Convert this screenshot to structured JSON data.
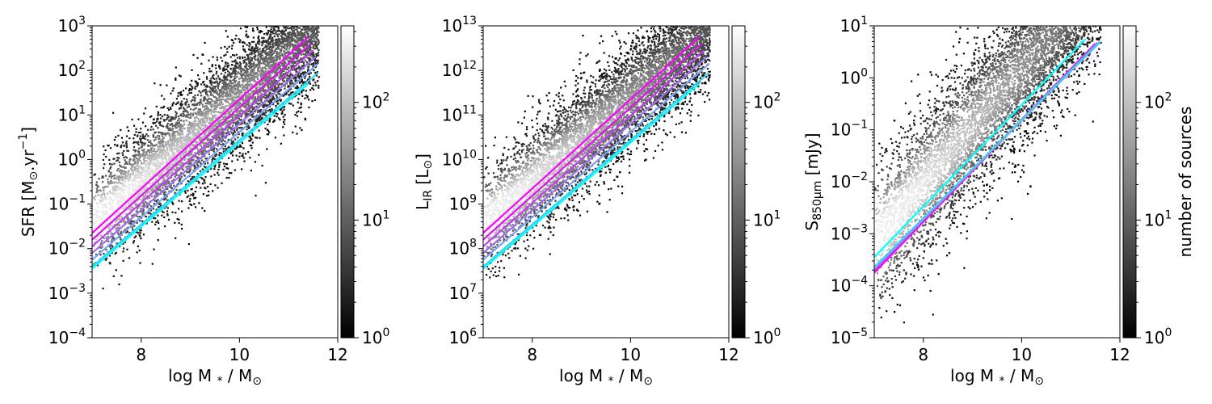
{
  "chart_data": [
    {
      "type": "heatmap",
      "xlabel": "log M",
      "xlabel_sub": "*",
      "xlabel_suffix": " / M",
      "xlabel_sun": "⊙",
      "ylabel_main": "SFR [M",
      "ylabel_sun": "⊙",
      "ylabel_mid": ".yr",
      "ylabel_sup": "−1",
      "ylabel_end": "]",
      "xlim": [
        7,
        12
      ],
      "ylim": [
        -4,
        3
      ],
      "yscale": "log",
      "xticks": [
        "8",
        "10",
        "12"
      ],
      "ytick_exponents": [
        "3",
        "2",
        "1",
        "0",
        "−1",
        "−2",
        "−3",
        "−4"
      ],
      "density_band": {
        "slope": 0.95,
        "intercept_at_7": -1.4,
        "half_width": 1.1
      },
      "series": [
        {
          "color": "#ff00ff",
          "x": [
            7.0,
            11.4
          ],
          "y": [
            -1.65,
            2.75
          ]
        },
        {
          "color": "#e014f0",
          "x": [
            7.0,
            11.45
          ],
          "y": [
            -1.8,
            2.6
          ]
        },
        {
          "color": "#c040f0",
          "x": [
            7.0,
            11.5
          ],
          "y": [
            -1.95,
            2.45
          ]
        },
        {
          "color": "#9f70f0",
          "x": [
            7.0,
            11.55
          ],
          "y": [
            -2.1,
            2.3
          ]
        },
        {
          "color": "#7fa0f0",
          "x": [
            7.0,
            11.6
          ],
          "y": [
            -2.25,
            2.15
          ]
        },
        {
          "color": "#40d0f0",
          "x": [
            7.0,
            11.6
          ],
          "y": [
            -2.4,
            1.95
          ]
        },
        {
          "color": "#00ffff",
          "x": [
            7.0,
            11.4
          ],
          "y": [
            -2.45,
            1.7
          ]
        }
      ],
      "colorbar": {
        "ticks_exp": [
          "0",
          "1",
          "2"
        ],
        "range_exp": [
          0,
          2.65
        ],
        "label": ""
      }
    },
    {
      "type": "heatmap",
      "xlabel": "log M",
      "xlabel_sub": "*",
      "xlabel_suffix": " / M",
      "xlabel_sun": "⊙",
      "ylabel_main": "L",
      "ylabel_sub": "IR",
      "ylabel_mid": " [L",
      "ylabel_sun": "⊙",
      "ylabel_end": "]",
      "xlim": [
        7,
        12
      ],
      "ylim": [
        6,
        13
      ],
      "yscale": "log",
      "xticks": [
        "8",
        "10",
        "12"
      ],
      "ytick_exponents": [
        "13",
        "12",
        "11",
        "10",
        "9",
        "8",
        "7",
        "6"
      ],
      "density_band": {
        "slope": 0.95,
        "intercept_at_7": 8.6,
        "half_width": 1.1
      },
      "series": [
        {
          "color": "#ff00ff",
          "x": [
            7.0,
            11.4
          ],
          "y": [
            8.35,
            12.75
          ]
        },
        {
          "color": "#e014f0",
          "x": [
            7.0,
            11.45
          ],
          "y": [
            8.2,
            12.6
          ]
        },
        {
          "color": "#c040f0",
          "x": [
            7.0,
            11.5
          ],
          "y": [
            8.05,
            12.45
          ]
        },
        {
          "color": "#9f70f0",
          "x": [
            7.0,
            11.55
          ],
          "y": [
            7.9,
            12.3
          ]
        },
        {
          "color": "#7fa0f0",
          "x": [
            7.0,
            11.6
          ],
          "y": [
            7.75,
            12.15
          ]
        },
        {
          "color": "#40d0f0",
          "x": [
            7.0,
            11.6
          ],
          "y": [
            7.6,
            11.95
          ]
        },
        {
          "color": "#00ffff",
          "x": [
            7.0,
            11.4
          ],
          "y": [
            7.55,
            11.7
          ]
        }
      ],
      "colorbar": {
        "ticks_exp": [
          "0",
          "1",
          "2"
        ],
        "range_exp": [
          0,
          2.65
        ],
        "label": ""
      }
    },
    {
      "type": "heatmap",
      "xlabel": "log M",
      "xlabel_sub": "*",
      "xlabel_suffix": " / M",
      "xlabel_sun": "⊙",
      "ylabel_main": "S",
      "ylabel_sub": "850μm",
      "ylabel_mid": " [mJy]",
      "xlim": [
        7,
        12
      ],
      "ylim": [
        -5,
        1
      ],
      "yscale": "log",
      "xticks": [
        "8",
        "10",
        "12"
      ],
      "ytick_exponents": [
        "1",
        "0",
        "−1",
        "−2",
        "−3",
        "−4",
        "−5"
      ],
      "density_band": {
        "slope": 1.1,
        "intercept_at_7": -3.1,
        "half_width": 1.3
      },
      "series": [
        {
          "color": "#ff00ff",
          "x": [
            7.0,
            11.5
          ],
          "y": [
            -3.75,
            0.65
          ]
        },
        {
          "color": "#e014f0",
          "x": [
            7.0,
            11.5
          ],
          "y": [
            -3.72,
            0.66
          ]
        },
        {
          "color": "#c040f0",
          "x": [
            7.0,
            11.55
          ],
          "y": [
            -3.7,
            0.67
          ]
        },
        {
          "color": "#9f70f0",
          "x": [
            7.0,
            11.55
          ],
          "y": [
            -3.68,
            0.68
          ]
        },
        {
          "color": "#7fa0f0",
          "x": [
            7.0,
            11.6
          ],
          "y": [
            -3.66,
            0.69
          ]
        },
        {
          "color": "#40d0f0",
          "x": [
            7.0,
            11.6
          ],
          "y": [
            -3.64,
            0.7
          ]
        },
        {
          "color": "#00ffff",
          "x": [
            7.0,
            11.3
          ],
          "y": [
            -3.45,
            0.75
          ]
        }
      ],
      "colorbar": {
        "ticks_exp": [
          "0",
          "1",
          "2"
        ],
        "range_exp": [
          0,
          2.65
        ],
        "label": "number of sources"
      }
    }
  ]
}
